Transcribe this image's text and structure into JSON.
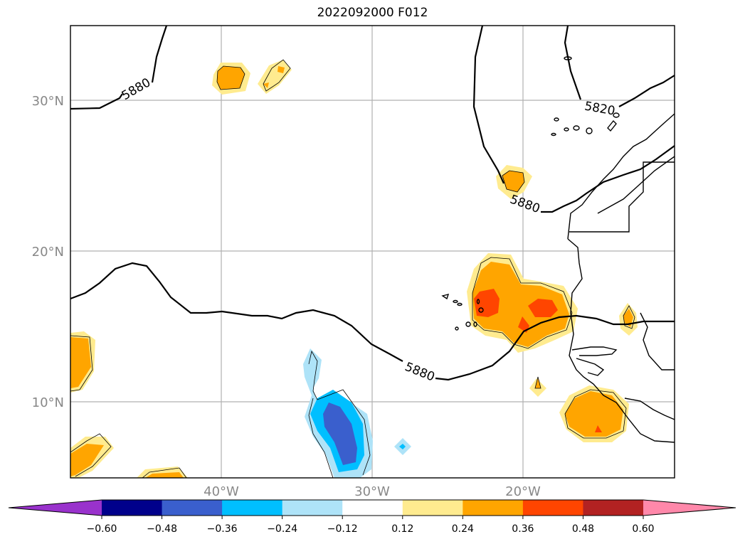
{
  "title": "2022092000 F012",
  "map": {
    "lat_labels": [
      "30°N",
      "20°N",
      "10°N"
    ],
    "lon_labels": [
      "40°W",
      "30°W",
      "20°W"
    ],
    "contour_labels": [
      "5880",
      "5820",
      "5880",
      "5880"
    ]
  },
  "colorbar": {
    "ticks": [
      "−0.60",
      "−0.48",
      "−0.36",
      "−0.24",
      "−0.12",
      "0.12",
      "0.24",
      "0.36",
      "0.48",
      "0.60"
    ],
    "colors": [
      "#9932cc",
      "#00008b",
      "#3a5fcd",
      "#00bfff",
      "#aee3f8",
      "#ffffff",
      "#ffeb8f",
      "#ffa500",
      "#ff4500",
      "#b22222",
      "#ff88aa"
    ]
  }
}
